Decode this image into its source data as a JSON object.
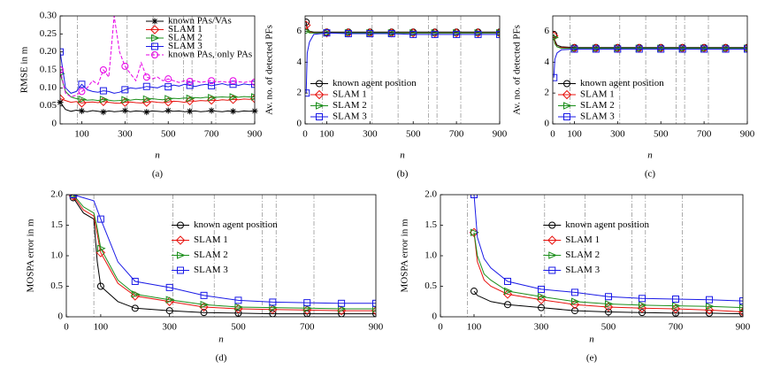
{
  "chart_data": [
    {
      "type": "line",
      "caption": "(a)",
      "xlabel": "n",
      "ylabel": "RMSE in m",
      "xlim": [
        0,
        900
      ],
      "ylim": [
        0,
        0.3
      ],
      "xticks": [
        100,
        300,
        500,
        700,
        900
      ],
      "yticks": [
        0,
        0.05,
        {
          "value": 0.1,
          "label": "0.10"
        },
        0.15,
        {
          "value": 0.2,
          "label": "0.20"
        },
        0.25,
        {
          "value": 0.3,
          "label": "0.30"
        }
      ],
      "vlines": [
        80,
        310,
        430,
        570,
        610,
        720
      ],
      "legend": "upper right",
      "x": [
        0,
        25,
        50,
        75,
        100,
        125,
        150,
        175,
        200,
        225,
        250,
        275,
        300,
        325,
        350,
        375,
        400,
        425,
        450,
        475,
        500,
        525,
        550,
        575,
        600,
        625,
        650,
        675,
        700,
        725,
        750,
        775,
        800,
        825,
        850,
        875,
        900
      ],
      "series": [
        {
          "name": "known PAs/VAs",
          "color": "#000000",
          "marker": "star",
          "values": [
            0.06,
            0.04,
            0.035,
            0.038,
            0.036,
            0.034,
            0.037,
            0.035,
            0.033,
            0.036,
            0.034,
            0.035,
            0.037,
            0.034,
            0.036,
            0.035,
            0.033,
            0.036,
            0.035,
            0.034,
            0.037,
            0.035,
            0.036,
            0.034,
            0.035,
            0.036,
            0.034,
            0.035,
            0.037,
            0.035,
            0.034,
            0.036,
            0.035,
            0.034,
            0.036,
            0.035,
            0.036
          ]
        },
        {
          "name": "SLAM 1",
          "color": "#e8130f",
          "marker": "diamond",
          "values": [
            0.07,
            0.065,
            0.06,
            0.062,
            0.058,
            0.06,
            0.061,
            0.059,
            0.062,
            0.06,
            0.058,
            0.057,
            0.06,
            0.061,
            0.059,
            0.058,
            0.06,
            0.062,
            0.06,
            0.059,
            0.061,
            0.063,
            0.062,
            0.06,
            0.064,
            0.063,
            0.065,
            0.064,
            0.066,
            0.065,
            0.067,
            0.066,
            0.068,
            0.067,
            0.069,
            0.068,
            0.07
          ]
        },
        {
          "name": "SLAM 2",
          "color": "#1c8f1c",
          "marker": "triangle",
          "values": [
            0.14,
            0.09,
            0.075,
            0.07,
            0.068,
            0.066,
            0.067,
            0.065,
            0.068,
            0.066,
            0.064,
            0.065,
            0.067,
            0.066,
            0.068,
            0.067,
            0.069,
            0.07,
            0.068,
            0.067,
            0.07,
            0.071,
            0.07,
            0.072,
            0.071,
            0.073,
            0.072,
            0.074,
            0.073,
            0.074,
            0.075,
            0.074,
            0.075,
            0.074,
            0.076,
            0.075,
            0.075
          ]
        },
        {
          "name": "SLAM 3",
          "color": "#1a1ae6",
          "marker": "square",
          "values": [
            0.2,
            0.1,
            0.085,
            0.09,
            0.11,
            0.095,
            0.09,
            0.088,
            0.092,
            0.09,
            0.085,
            0.088,
            0.095,
            0.1,
            0.098,
            0.1,
            0.104,
            0.102,
            0.1,
            0.106,
            0.103,
            0.108,
            0.105,
            0.11,
            0.107,
            0.104,
            0.108,
            0.11,
            0.106,
            0.109,
            0.112,
            0.108,
            0.11,
            0.107,
            0.111,
            0.109,
            0.11
          ]
        },
        {
          "name": "known PAs, only PAs",
          "color": "#e600e6",
          "marker": "circle",
          "style": "dashed",
          "values": [
            0.15,
            0.085,
            0.075,
            0.08,
            0.09,
            0.1,
            0.12,
            0.11,
            0.15,
            0.13,
            0.3,
            0.2,
            0.16,
            0.14,
            0.12,
            0.17,
            0.13,
            0.125,
            0.13,
            0.12,
            0.125,
            0.12,
            0.115,
            0.12,
            0.118,
            0.12,
            0.115,
            0.118,
            0.12,
            0.116,
            0.118,
            0.115,
            0.12,
            0.117,
            0.115,
            0.118,
            0.116
          ]
        }
      ]
    },
    {
      "type": "line",
      "caption": "(b)",
      "xlabel": "n",
      "ylabel": "Av. no. of detected PFs",
      "xlim": [
        0,
        900
      ],
      "ylim": [
        0,
        7
      ],
      "xticks": [
        0,
        100,
        300,
        500,
        700,
        900
      ],
      "yticks": [
        0,
        2,
        4,
        6
      ],
      "vlines": [
        80,
        310,
        430,
        570,
        610,
        720
      ],
      "legend": "lower left",
      "x": [
        5,
        10,
        20,
        40,
        100,
        200,
        300,
        400,
        500,
        600,
        700,
        800,
        900
      ],
      "series": [
        {
          "name": "known agent position",
          "color": "#000000",
          "marker": "circle",
          "values": [
            6.6,
            6.2,
            6.0,
            5.95,
            5.95,
            5.95,
            5.95,
            5.95,
            5.95,
            5.95,
            5.95,
            5.95,
            5.95
          ]
        },
        {
          "name": "SLAM 1",
          "color": "#e8130f",
          "marker": "diamond",
          "values": [
            6.4,
            6.1,
            5.95,
            5.9,
            5.9,
            5.9,
            5.9,
            5.9,
            5.9,
            5.9,
            5.9,
            5.9,
            5.9
          ]
        },
        {
          "name": "SLAM 2",
          "color": "#1c8f1c",
          "marker": "triangle",
          "values": [
            6.0,
            6.0,
            5.9,
            5.9,
            5.9,
            5.9,
            5.9,
            5.9,
            5.9,
            5.9,
            5.9,
            5.9,
            5.9
          ]
        },
        {
          "name": "SLAM 3",
          "color": "#1a1ae6",
          "marker": "square",
          "values": [
            2.0,
            4.6,
            5.3,
            5.8,
            5.9,
            5.85,
            5.85,
            5.85,
            5.8,
            5.8,
            5.8,
            5.8,
            5.8
          ]
        }
      ]
    },
    {
      "type": "line",
      "caption": "(c)",
      "xlabel": "n",
      "ylabel": "Av. no. of detected PFs",
      "xlim": [
        0,
        900
      ],
      "ylim": [
        0,
        7
      ],
      "xticks": [
        0,
        100,
        300,
        500,
        700,
        900
      ],
      "yticks": [
        0,
        2,
        4,
        6
      ],
      "vlines": [
        80,
        310,
        430,
        570,
        610,
        720
      ],
      "legend": "lower left",
      "x": [
        5,
        10,
        20,
        40,
        100,
        200,
        300,
        400,
        500,
        600,
        700,
        800,
        900
      ],
      "series": [
        {
          "name": "known agent position",
          "color": "#000000",
          "marker": "circle",
          "values": [
            5.8,
            5.4,
            5.1,
            5.0,
            4.95,
            4.95,
            4.95,
            4.95,
            4.95,
            4.95,
            4.95,
            4.95,
            4.95
          ]
        },
        {
          "name": "SLAM 1",
          "color": "#e8130f",
          "marker": "diamond",
          "values": [
            5.7,
            5.3,
            5.0,
            4.95,
            4.9,
            4.9,
            4.9,
            4.9,
            4.9,
            4.9,
            4.9,
            4.9,
            4.9
          ]
        },
        {
          "name": "SLAM 2",
          "color": "#1c8f1c",
          "marker": "triangle",
          "values": [
            5.6,
            5.2,
            5.0,
            4.9,
            4.9,
            4.9,
            4.9,
            4.9,
            4.9,
            4.9,
            4.9,
            4.9,
            4.9
          ]
        },
        {
          "name": "SLAM 3",
          "color": "#1a1ae6",
          "marker": "square",
          "values": [
            3.0,
            4.2,
            4.6,
            4.8,
            4.85,
            4.85,
            4.85,
            4.85,
            4.85,
            4.85,
            4.85,
            4.85,
            4.85
          ]
        }
      ]
    },
    {
      "type": "line",
      "caption": "(d)",
      "xlabel": "n",
      "ylabel": "MOSPA error in m",
      "xlim": [
        0,
        900
      ],
      "ylim": [
        0,
        2
      ],
      "xticks": [
        0,
        100,
        300,
        500,
        700,
        900
      ],
      "yticks": [
        0,
        0.5,
        {
          "value": 1,
          "label": "1.0"
        },
        1.5,
        {
          "value": 2,
          "label": "2.0"
        }
      ],
      "vlines": [
        80,
        310,
        430,
        570,
        610,
        720
      ],
      "legend": "center",
      "x": [
        20,
        50,
        80,
        90,
        100,
        150,
        200,
        300,
        400,
        500,
        600,
        700,
        800,
        900
      ],
      "series": [
        {
          "name": "known agent position",
          "color": "#000000",
          "marker": "circle",
          "values": [
            1.95,
            1.7,
            1.6,
            0.9,
            0.5,
            0.25,
            0.14,
            0.1,
            0.07,
            0.06,
            0.05,
            0.05,
            0.05,
            0.05
          ]
        },
        {
          "name": "SLAM 1",
          "color": "#e8130f",
          "marker": "diamond",
          "values": [
            1.98,
            1.75,
            1.65,
            1.35,
            1.05,
            0.55,
            0.34,
            0.25,
            0.16,
            0.13,
            0.12,
            0.11,
            0.1,
            0.1
          ]
        },
        {
          "name": "SLAM 2",
          "color": "#1c8f1c",
          "marker": "triangle",
          "values": [
            2.0,
            1.8,
            1.7,
            1.45,
            1.12,
            0.6,
            0.37,
            0.28,
            0.2,
            0.16,
            0.15,
            0.14,
            0.13,
            0.13
          ]
        },
        {
          "name": "SLAM 3",
          "color": "#1a1ae6",
          "marker": "square",
          "values": [
            2.0,
            1.95,
            1.9,
            1.75,
            1.6,
            0.9,
            0.58,
            0.48,
            0.35,
            0.27,
            0.24,
            0.23,
            0.22,
            0.22
          ]
        }
      ]
    },
    {
      "type": "line",
      "caption": "(e)",
      "xlabel": "n",
      "ylabel": "MOSPA error in m",
      "xlim": [
        0,
        900
      ],
      "ylim": [
        0,
        2
      ],
      "xticks": [
        0,
        100,
        300,
        500,
        700,
        900
      ],
      "yticks": [
        0,
        0.5,
        {
          "value": 1,
          "label": "1.0"
        },
        1.5,
        {
          "value": 2,
          "label": "2.0"
        }
      ],
      "vlines": [
        80,
        310,
        430,
        570,
        610,
        720
      ],
      "legend": "center",
      "x": [
        100,
        110,
        130,
        150,
        200,
        300,
        400,
        500,
        600,
        700,
        800,
        900
      ],
      "series": [
        {
          "name": "known agent position",
          "color": "#000000",
          "marker": "circle",
          "values": [
            0.42,
            0.35,
            0.3,
            0.25,
            0.2,
            0.15,
            0.1,
            0.08,
            0.07,
            0.06,
            0.06,
            0.05
          ]
        },
        {
          "name": "SLAM 1",
          "color": "#e8130f",
          "marker": "diamond",
          "values": [
            1.38,
            0.9,
            0.6,
            0.5,
            0.37,
            0.28,
            0.2,
            0.16,
            0.14,
            0.13,
            0.11,
            0.08
          ]
        },
        {
          "name": "SLAM 2",
          "color": "#1c8f1c",
          "marker": "triangle",
          "values": [
            1.38,
            1.0,
            0.7,
            0.6,
            0.42,
            0.33,
            0.25,
            0.21,
            0.19,
            0.18,
            0.17,
            0.15
          ]
        },
        {
          "name": "SLAM 3",
          "color": "#1a1ae6",
          "marker": "square",
          "values": [
            2.0,
            1.3,
            0.95,
            0.8,
            0.58,
            0.45,
            0.4,
            0.33,
            0.3,
            0.29,
            0.28,
            0.26
          ]
        }
      ]
    }
  ]
}
